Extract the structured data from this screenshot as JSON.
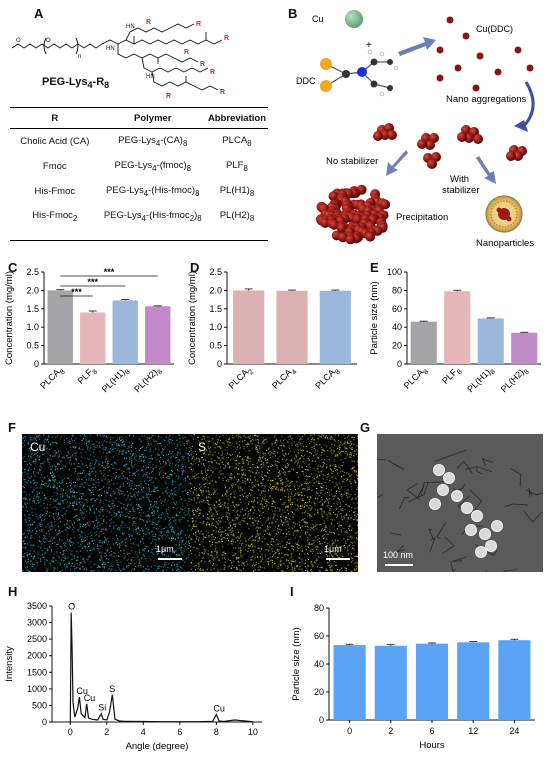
{
  "panels": {
    "a": "A",
    "b": "B",
    "c": "C",
    "d": "D",
    "e": "E",
    "f": "F",
    "g": "G",
    "h": "H",
    "i": "I"
  },
  "structure": {
    "name_html": "PEG-Lys<sub>4</sub>-R<sub>8</sub>",
    "r_label": "R",
    "n_label": "n",
    "o_label": "O",
    "nh_label": "HN",
    "h_label": "H"
  },
  "table": {
    "headers": [
      "R",
      "Polymer",
      "Abbreviation"
    ],
    "rows": [
      [
        "Cholic Acid (CA)",
        "PEG-Lys<sub>4</sub>-(CA)<sub>8</sub>",
        "PLCA<sub>8</sub>"
      ],
      [
        "Fmoc",
        "PEG-Lys<sub>4</sub>-(fmoc)<sub>8</sub>",
        "PLF<sub>8</sub>"
      ],
      [
        "His-Fmoc",
        "PEG-Lys<sub>4</sub>-(His-fmoc)<sub>8</sub>",
        "PL(H1)<sub>8</sub>"
      ],
      [
        "His-Fmoc<sub>2</sub>",
        "PEG-Lys<sub>4</sub>-(His-fmoc<sub>2</sub>)<sub>8</sub>",
        "PL(H2)<sub>8</sub>"
      ]
    ]
  },
  "schematic": {
    "cu_html": "Cu<sup>2+</sup>",
    "plus": "+",
    "ddc_html": "DDC<sup>-</sup>",
    "cuddc_html": "Cu(DDC)<sub>2</sub>",
    "nano_agg": "Nano aggregations",
    "no_stab": "No stabilizer",
    "with_stab_line1": "With",
    "with_stab_line2": "stabilizer",
    "precip": "Precipitation",
    "nanoparticles": "Nanoparticles",
    "colors": {
      "cu_ion": "#7bb58a",
      "complex": "#8b1512",
      "arrow": "#6d7fb6",
      "sulfur": "#f0a820",
      "nitrogen": "#1f2fd6",
      "carbon": "#333333"
    }
  },
  "chart_data": [
    {
      "id": "C",
      "type": "bar",
      "categories": [
        "PLCA8",
        "PLF8",
        "PL(H1)8",
        "PL(H2)8"
      ],
      "category_labels_html": [
        "PLCA<tspan font-size='7' dy='3'>8</tspan>",
        "PLF<tspan font-size='7' dy='3'>8</tspan>",
        "PL(H1)<tspan font-size='7' dy='3'>8</tspan>",
        "PL(H2)<tspan font-size='7' dy='3'>8</tspan>"
      ],
      "values": [
        2.0,
        1.4,
        1.73,
        1.57
      ],
      "errors": [
        0.02,
        0.04,
        0.02,
        0.01
      ],
      "colors": [
        "#a3a3a8",
        "#e6b5b8",
        "#9bb8dc",
        "#c08bc8"
      ],
      "ylabel": "Concentration (mg/ml)",
      "ylim": [
        0,
        2.5
      ],
      "yticks": [
        "0",
        "0.5",
        "1.0",
        "1.5",
        "2.0",
        "2.5"
      ],
      "significance": [
        {
          "from": 0,
          "to": 1,
          "label": "***"
        },
        {
          "from": 0,
          "to": 2,
          "label": "***"
        },
        {
          "from": 0,
          "to": 3,
          "label": "***"
        }
      ]
    },
    {
      "id": "D",
      "type": "bar",
      "categories": [
        "PLCA2",
        "PLCA4",
        "PLCA8"
      ],
      "category_labels_html": [
        "PLCA<tspan font-size='7' dy='3'>2</tspan>",
        "PLCA<tspan font-size='7' dy='3'>4</tspan>",
        "PLCA<tspan font-size='7' dy='3'>8</tspan>"
      ],
      "values": [
        2.0,
        1.99,
        1.99
      ],
      "errors": [
        0.04,
        0.02,
        0.02
      ],
      "colors": [
        "#dbb0b2",
        "#dbb0b2",
        "#9bb8dc"
      ],
      "ylabel": "Concentration (mg/ml)",
      "ylim": [
        0,
        2.5
      ],
      "yticks": [
        "0",
        "0.5",
        "1.0",
        "1.5",
        "2.0",
        "2.5"
      ]
    },
    {
      "id": "E",
      "type": "bar",
      "categories": [
        "PLCA8",
        "PLF8",
        "PL(H1)8",
        "PL(H2)8"
      ],
      "category_labels_html": [
        "PLCA<tspan font-size='7' dy='3'>8</tspan>",
        "PLF<tspan font-size='7' dy='3'>8</tspan>",
        "PL(H1)<tspan font-size='7' dy='3'>8</tspan>",
        "PL(H2)<tspan font-size='7' dy='3'>8</tspan>"
      ],
      "values": [
        46,
        79,
        49.5,
        34
      ],
      "errors": [
        0.6,
        1.2,
        0.6,
        0.5
      ],
      "colors": [
        "#a3a3a8",
        "#e6b5b8",
        "#9bb8dc",
        "#c08bc8"
      ],
      "ylabel": "Particle size (nm)",
      "ylim": [
        0,
        100
      ],
      "yticks": [
        "0",
        "20",
        "40",
        "60",
        "80",
        "100"
      ]
    },
    {
      "id": "H",
      "type": "line",
      "x": [
        0,
        0.05,
        0.1,
        0.15,
        0.25,
        0.4,
        0.5,
        0.6,
        0.8,
        0.9,
        1.0,
        1.2,
        1.5,
        1.7,
        1.8,
        2.0,
        2.15,
        2.3,
        2.45,
        2.7,
        3.0,
        4.0,
        5.0,
        6.0,
        7.0,
        7.8,
        8.0,
        8.15,
        8.4,
        9.0,
        10.0
      ],
      "y": [
        0,
        3300,
        2200,
        600,
        150,
        400,
        750,
        250,
        130,
        550,
        120,
        80,
        60,
        250,
        80,
        60,
        300,
        820,
        80,
        30,
        20,
        15,
        10,
        10,
        10,
        20,
        230,
        30,
        15,
        60,
        10
      ],
      "color": "#111111",
      "xlabel": "Angle (degree)",
      "ylabel": "Intensity",
      "xlim": [
        -1,
        10.5
      ],
      "ylim": [
        0,
        3500
      ],
      "xticks": [
        "0",
        "2",
        "4",
        "6",
        "8",
        "10"
      ],
      "yticks": [
        "0",
        "500",
        "1000",
        "1500",
        "2000",
        "2500",
        "3000",
        "3500"
      ],
      "annotations": [
        {
          "label": "O",
          "x": 0.05,
          "y": 3300
        },
        {
          "label": "Cu",
          "x": 0.5,
          "y": 750
        },
        {
          "label": "Cu",
          "x": 0.9,
          "y": 550
        },
        {
          "label": "Si",
          "x": 1.7,
          "y": 250
        },
        {
          "label": "S",
          "x": 2.3,
          "y": 820
        },
        {
          "label": "Cu",
          "x": 8.0,
          "y": 230
        }
      ]
    },
    {
      "id": "I",
      "type": "bar",
      "categories": [
        "0",
        "2",
        "6",
        "12",
        "24"
      ],
      "values": [
        53.5,
        53,
        54.5,
        55.5,
        57
      ],
      "errors": [
        0.6,
        0.8,
        0.5,
        0.5,
        0.7
      ],
      "colors": [
        "#5ba3f5",
        "#5ba3f5",
        "#5ba3f5",
        "#5ba3f5",
        "#5ba3f5"
      ],
      "xlabel": "Hours",
      "ylabel": "Particle size (nm)",
      "ylim": [
        0,
        80
      ],
      "yticks": [
        "0",
        "20",
        "40",
        "60",
        "80"
      ]
    }
  ],
  "maps": {
    "f_left_label": "Cu",
    "f_right_label": "S",
    "scale": "1μm",
    "sem_scale": "100 nm",
    "cu_color": "#39c3cf",
    "s_color": "#d9d22c"
  }
}
